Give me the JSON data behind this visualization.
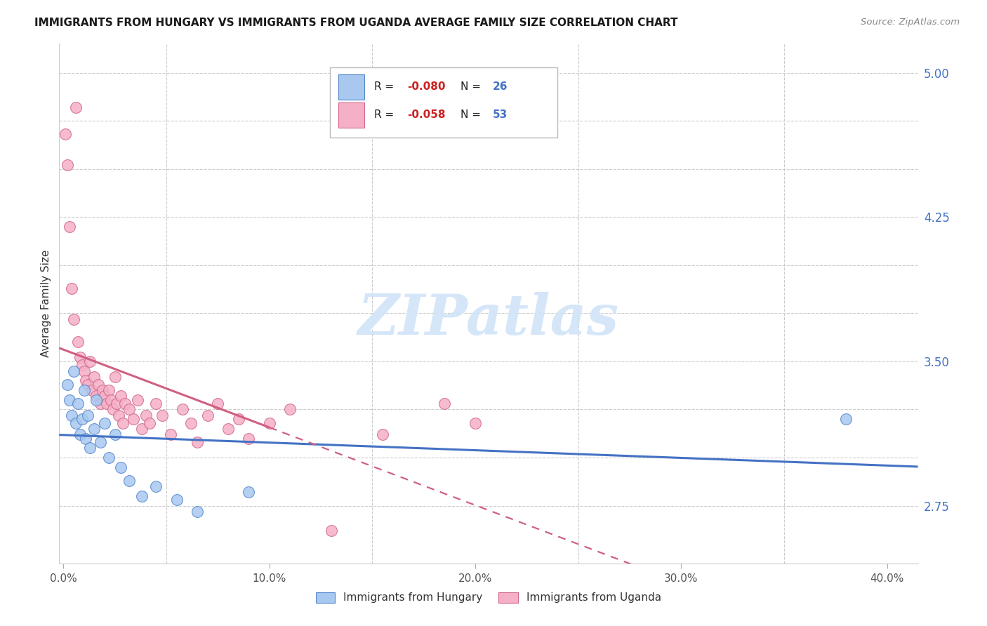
{
  "title": "IMMIGRANTS FROM HUNGARY VS IMMIGRANTS FROM UGANDA AVERAGE FAMILY SIZE CORRELATION CHART",
  "source": "Source: ZipAtlas.com",
  "ylabel": "Average Family Size",
  "ylim": [
    2.45,
    5.15
  ],
  "xlim": [
    -0.002,
    0.415
  ],
  "yticks": [
    2.75,
    3.0,
    3.25,
    3.5,
    3.75,
    4.0,
    4.25,
    4.5,
    4.75,
    5.0
  ],
  "ytick_labels": [
    "2.75",
    "",
    "",
    "3.50",
    "",
    "",
    "4.25",
    "",
    "",
    "5.00"
  ],
  "xtick_positions": [
    0.0,
    0.05,
    0.1,
    0.15,
    0.2,
    0.25,
    0.3,
    0.35,
    0.4
  ],
  "xtick_label_positions": [
    0.0,
    0.1,
    0.2,
    0.3,
    0.4
  ],
  "xtick_labels": [
    "0.0%",
    "10.0%",
    "20.0%",
    "30.0%",
    "40.0%"
  ],
  "legend_hungary": "Immigrants from Hungary",
  "legend_uganda": "Immigrants from Uganda",
  "r_hungary": "-0.080",
  "n_hungary": "26",
  "r_uganda": "-0.058",
  "n_uganda": "53",
  "hungary_color": "#a8c8f0",
  "uganda_color": "#f5b0c8",
  "hungary_edge_color": "#5588cc",
  "uganda_edge_color": "#d06888",
  "hungary_line_color": "#4472c4",
  "uganda_line_color": "#d06080",
  "watermark_color": "#d0e4f8",
  "hungary_x": [
    0.002,
    0.003,
    0.004,
    0.005,
    0.006,
    0.007,
    0.008,
    0.009,
    0.01,
    0.011,
    0.012,
    0.013,
    0.015,
    0.016,
    0.018,
    0.02,
    0.022,
    0.025,
    0.028,
    0.032,
    0.038,
    0.045,
    0.055,
    0.065,
    0.09,
    0.38
  ],
  "hungary_y": [
    3.38,
    3.3,
    3.22,
    3.45,
    3.18,
    3.28,
    3.12,
    3.2,
    3.35,
    3.1,
    3.22,
    3.05,
    3.15,
    3.3,
    3.08,
    3.18,
    3.0,
    3.12,
    2.95,
    2.88,
    2.8,
    2.85,
    2.78,
    2.72,
    2.82,
    3.2
  ],
  "uganda_x": [
    0.001,
    0.002,
    0.003,
    0.004,
    0.005,
    0.006,
    0.007,
    0.008,
    0.009,
    0.01,
    0.011,
    0.012,
    0.013,
    0.014,
    0.015,
    0.016,
    0.017,
    0.018,
    0.019,
    0.02,
    0.021,
    0.022,
    0.023,
    0.024,
    0.025,
    0.026,
    0.027,
    0.028,
    0.029,
    0.03,
    0.032,
    0.034,
    0.036,
    0.038,
    0.04,
    0.042,
    0.045,
    0.048,
    0.052,
    0.058,
    0.062,
    0.065,
    0.07,
    0.075,
    0.08,
    0.085,
    0.09,
    0.1,
    0.11,
    0.13,
    0.155,
    0.185,
    0.2
  ],
  "uganda_y": [
    4.68,
    4.52,
    4.2,
    3.88,
    3.72,
    4.82,
    3.6,
    3.52,
    3.48,
    3.45,
    3.4,
    3.38,
    3.5,
    3.35,
    3.42,
    3.32,
    3.38,
    3.28,
    3.35,
    3.32,
    3.28,
    3.35,
    3.3,
    3.25,
    3.42,
    3.28,
    3.22,
    3.32,
    3.18,
    3.28,
    3.25,
    3.2,
    3.3,
    3.15,
    3.22,
    3.18,
    3.28,
    3.22,
    3.12,
    3.25,
    3.18,
    3.08,
    3.22,
    3.28,
    3.15,
    3.2,
    3.1,
    3.18,
    3.25,
    2.62,
    3.12,
    3.28,
    3.18
  ]
}
